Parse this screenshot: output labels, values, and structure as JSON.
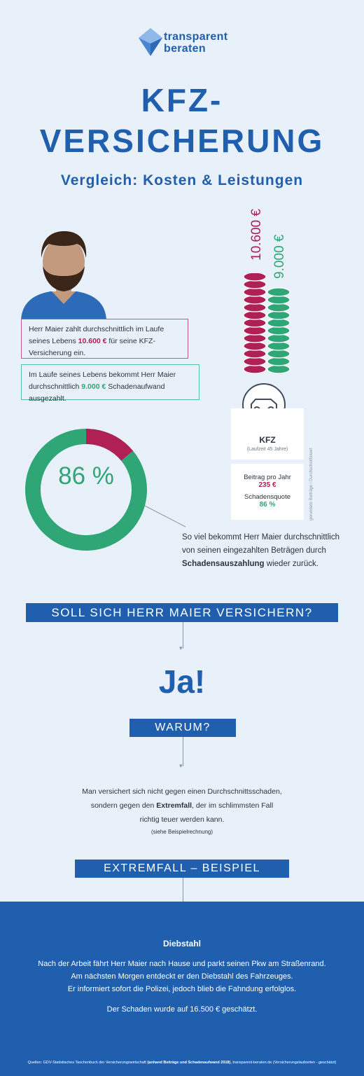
{
  "logo": {
    "line1": "transparent",
    "line2": "beraten"
  },
  "title": {
    "line1": "KFZ-",
    "line2": "VERSICHERUNG"
  },
  "subtitle": "Vergleich: Kosten & Leistungen",
  "box_paid": {
    "pre": "Herr Maier zahlt durchschnittlich im Laufe seines Lebens ",
    "value": "10.600 €",
    "post": " für seine KFZ-Versicherung ein."
  },
  "box_received": {
    "pre": "Im Laufe seines Lebens bekommt Herr Maier durchschnittlich ",
    "value": "9.000 €",
    "post": " Schadenaufwand ausgezahlt."
  },
  "coins": {
    "paid_label": "10.600 €",
    "received_label": "9.000 €",
    "paid_count": 13,
    "received_count": 11,
    "paid_color": "#b02055",
    "received_color": "#2ea676"
  },
  "car_icon": "car-icon",
  "card": {
    "title": "KFZ",
    "runtime": "(Laufzeit 45 Jahre)",
    "premium_label": "Beitrag pro Jahr",
    "premium_value": "235 €",
    "ratio_label": "Schadensquote",
    "ratio_value": "86 %",
    "side_note": "gerundete Beiträge / Durchschnittswert"
  },
  "donut": {
    "label": "86 %",
    "percent": 86,
    "main_color": "#2ea676",
    "rest_color": "#b02055"
  },
  "donut_caption": {
    "line1": "So viel bekommt Herr Maier durchschnittlich",
    "line2": "von seinen eingezahlten Beträgen durch",
    "bold": "Schadensauszahlung",
    "tail": " wieder zurück."
  },
  "question": "SOLL SICH HERR MAIER VERSICHERN?",
  "answer": "Ja!",
  "why": "WARUM?",
  "reason": {
    "line1": "Man versichert sich nicht gegen einen Durchschnittsschaden,",
    "line2_pre": "sondern gegen den ",
    "line2_bold": "Extremfall",
    "line2_post": ", der im schlimmsten Fall",
    "line3": "richtig teuer werden kann.",
    "note": "(siehe Beispielrechnung)"
  },
  "example_heading": "EXTREMFALL – BEISPIEL",
  "story": {
    "title": "Diebstahl",
    "line1": "Nach der Arbeit fährt Herr Maier nach Hause und parkt seinen Pkw am Straßenrand.",
    "line2": "Am nächsten Morgen entdeckt er den Diebstahl des Fahrzeuges.",
    "line3": "Er informiert sofort die Polizei, jedoch blieb die Fahndung erfolglos.",
    "line4": "Der Schaden wurde auf 16.500 € geschätzt."
  },
  "sources": {
    "pre": "Quellen: GDV-Statistisches Taschenbuch der Versicherungswirtschaft ",
    "bold": "(anhand Beiträge und Schadenaufwand 2018)",
    "post": ", transparent-beraten.de  (Versicherungslaufzeiten - geschätzt)"
  }
}
